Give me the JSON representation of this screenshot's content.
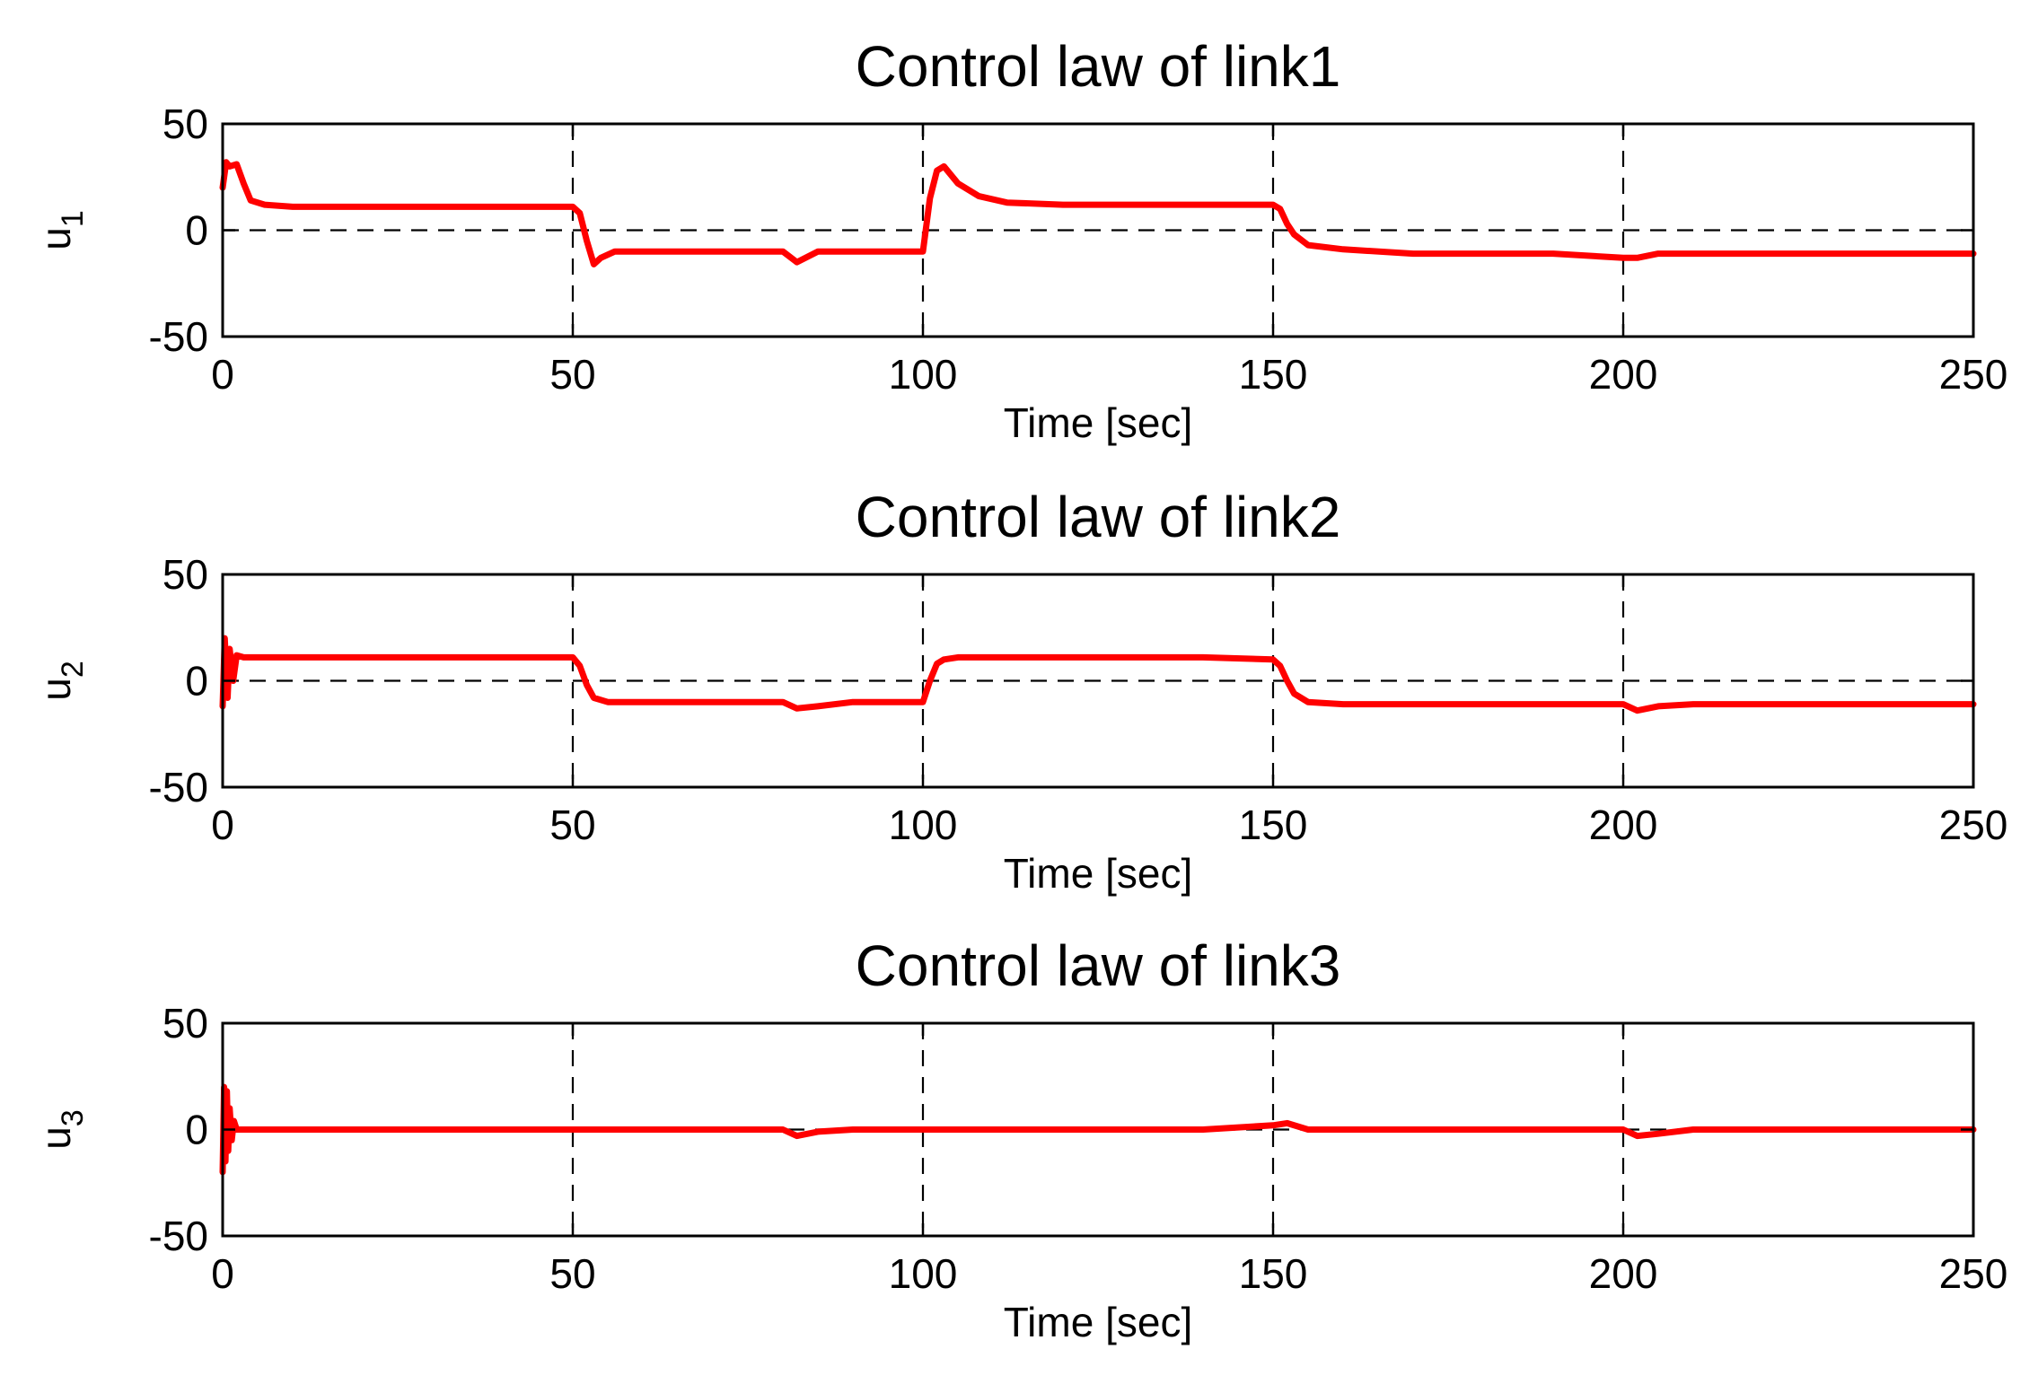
{
  "chart_data": [
    {
      "type": "line",
      "title": "Control law of link1",
      "xlabel": "Time [sec]",
      "ylabel": {
        "base": "u",
        "sub": "1"
      },
      "xlim": [
        0,
        250
      ],
      "ylim": [
        -50,
        50
      ],
      "xticks": [
        "0",
        "50",
        "100",
        "150",
        "200",
        "250"
      ],
      "yticks": [
        "50",
        "0",
        "-50"
      ],
      "grid": "dashed",
      "color": "#ff0000",
      "series": [
        {
          "x": [
            0,
            0.5,
            1,
            2,
            3,
            4,
            6,
            10,
            20,
            30,
            40,
            50,
            51,
            52,
            53,
            54,
            56,
            60,
            70,
            80,
            82,
            85,
            90,
            100,
            101,
            102,
            103,
            105,
            108,
            112,
            120,
            130,
            140,
            150,
            151,
            152,
            153,
            155,
            160,
            170,
            180,
            190,
            200,
            202,
            205,
            210,
            220,
            230,
            240,
            250
          ],
          "y": [
            20,
            32,
            30,
            31,
            22,
            14,
            12,
            11,
            11,
            11,
            11,
            11,
            8,
            -5,
            -16,
            -13,
            -10,
            -10,
            -10,
            -10,
            -15,
            -10,
            -10,
            -10,
            15,
            28,
            30,
            22,
            16,
            13,
            12,
            12,
            12,
            12,
            10,
            3,
            -2,
            -7,
            -9,
            -11,
            -11,
            -11,
            -13,
            -13,
            -11,
            -11,
            -11,
            -11,
            -11,
            -11
          ]
        }
      ]
    },
    {
      "type": "line",
      "title": "Control law of link2",
      "xlabel": "Time [sec]",
      "ylabel": {
        "base": "u",
        "sub": "2"
      },
      "xlim": [
        0,
        250
      ],
      "ylim": [
        -50,
        50
      ],
      "xticks": [
        "0",
        "50",
        "100",
        "150",
        "200",
        "250"
      ],
      "yticks": [
        "50",
        "0",
        "-50"
      ],
      "grid": "dashed",
      "color": "#ff0000",
      "series": [
        {
          "x": [
            0,
            0.3,
            0.7,
            1,
            1.5,
            2,
            3,
            5,
            10,
            20,
            30,
            40,
            50,
            51,
            52,
            53,
            55,
            60,
            70,
            80,
            82,
            85,
            90,
            100,
            101,
            102,
            103,
            105,
            110,
            120,
            130,
            140,
            150,
            151,
            152,
            153,
            155,
            160,
            170,
            180,
            190,
            200,
            202,
            205,
            210,
            220,
            230,
            240,
            250
          ],
          "y": [
            -12,
            20,
            -8,
            15,
            0,
            12,
            11,
            11,
            11,
            11,
            11,
            11,
            11,
            7,
            -2,
            -8,
            -10,
            -10,
            -10,
            -10,
            -13,
            -12,
            -10,
            -10,
            0,
            8,
            10,
            11,
            11,
            11,
            11,
            11,
            10,
            7,
            0,
            -6,
            -10,
            -11,
            -11,
            -11,
            -11,
            -11,
            -14,
            -12,
            -11,
            -11,
            -11,
            -11,
            -11
          ]
        }
      ]
    },
    {
      "type": "line",
      "title": "Control law of link3",
      "xlabel": "Time [sec]",
      "ylabel": {
        "base": "u",
        "sub": "3"
      },
      "xlim": [
        0,
        250
      ],
      "ylim": [
        -50,
        50
      ],
      "xticks": [
        "0",
        "50",
        "100",
        "150",
        "200",
        "250"
      ],
      "yticks": [
        "50",
        "0",
        "-50"
      ],
      "grid": "dashed",
      "color": "#ff0000",
      "series": [
        {
          "x": [
            0,
            0.2,
            0.4,
            0.6,
            0.8,
            1,
            1.3,
            1.6,
            2,
            3,
            10,
            20,
            30,
            40,
            50,
            60,
            70,
            80,
            82,
            85,
            90,
            100,
            110,
            120,
            130,
            140,
            150,
            152,
            155,
            160,
            170,
            180,
            190,
            200,
            202,
            205,
            210,
            220,
            230,
            240,
            250
          ],
          "y": [
            -20,
            20,
            -15,
            18,
            -10,
            10,
            -5,
            4,
            0,
            0,
            0,
            0,
            0,
            0,
            0,
            0,
            0,
            0,
            -3,
            -1,
            0,
            0,
            0,
            0,
            0,
            0,
            2,
            3,
            0,
            0,
            0,
            0,
            0,
            0,
            -3,
            -2,
            0,
            0,
            0,
            0,
            0
          ]
        }
      ]
    }
  ]
}
